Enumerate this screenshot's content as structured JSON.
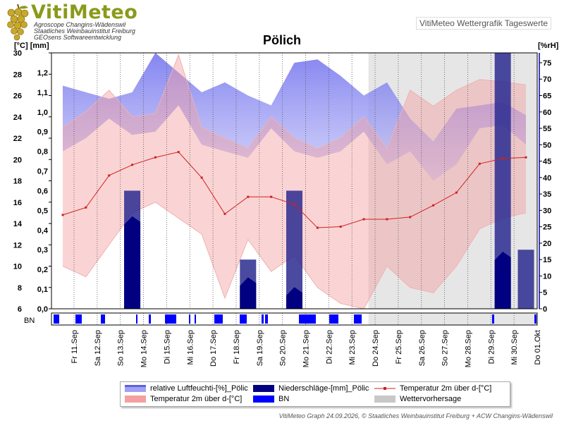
{
  "header": {
    "brand": "VitiMeteo",
    "lines": [
      "Agroscope Changins-Wädenswil",
      "Staatliches Weinbauinstitut Freiburg",
      "GEOsens Softwareentwicklung"
    ],
    "right_label": "VitiMeteo Wettergrafik Tageswerte"
  },
  "footer": "VitiMeteo Graph 24.09.2026, © Staatliches Weinbauinstitut Freiburg + ACW Changins-Wädenswil",
  "chart_data": {
    "type": "line",
    "title": "Pölich",
    "unit_left": "[°C] [mm]",
    "unit_right": "[%rH]",
    "categories": [
      "Fr 11.Sep",
      "Sa 12.Sep",
      "So 13.Sep",
      "Mo 14.Sep",
      "Di 15.Sep",
      "Mi 16.Sep",
      "Do 17.Sep",
      "Fr 18.Sep",
      "Sa 19.Sep",
      "So 20.Sep",
      "Mo 21.Sep",
      "Di 22.Sep",
      "Mi 23.Sep",
      "Do 24.Sep",
      "Fr 25.Sep",
      "Sa 26.Sep",
      "So 27.Sep",
      "Mo 28.Sep",
      "Di 29.Sep",
      "Mi 30.Sep",
      "Do 01.Okt"
    ],
    "axes": {
      "temp": {
        "range": [
          6,
          30
        ],
        "ticks": [
          6,
          8,
          10,
          12,
          14,
          16,
          18,
          20,
          22,
          24,
          26,
          28,
          30
        ]
      },
      "precip": {
        "range": [
          0,
          1.3
        ],
        "ticks": [
          "0,0",
          "0,1",
          "0,2",
          "0,3",
          "0,4",
          "0,5",
          "0,6",
          "0,7",
          "0,8",
          "0,9",
          "1,0",
          "1,1",
          "1,2"
        ]
      },
      "humidity": {
        "range": [
          0,
          78
        ],
        "ticks": [
          0,
          5,
          10,
          15,
          20,
          25,
          30,
          35,
          40,
          45,
          50,
          55,
          60,
          65,
          70,
          75
        ]
      }
    },
    "forecast_from_index": 13.2,
    "forecast_label": "Wettervorhersage",
    "series": [
      {
        "name": "relative Luftfeuchti-[%]_Pölic",
        "axis": "humidity",
        "color": "#8080f0",
        "max": [
          68,
          66,
          64,
          66,
          78,
          72,
          66,
          69,
          65,
          62,
          75,
          76,
          71,
          65,
          69,
          58,
          51,
          61,
          62,
          63,
          59
        ],
        "min": [
          48,
          52,
          58,
          53,
          54,
          62,
          50,
          48,
          46,
          55,
          48,
          46,
          48,
          54,
          44,
          48,
          39,
          44,
          55,
          56,
          50
        ]
      },
      {
        "name": "Temperatur 2m über d-[°C]",
        "axis": "temp",
        "color": "#f4a0a0",
        "max": [
          23,
          24.5,
          26.5,
          24,
          24.3,
          29.8,
          23,
          22,
          21,
          24,
          22,
          21,
          22,
          24,
          21,
          26.5,
          25,
          26.5,
          27.5,
          27.3,
          27
        ],
        "min": [
          10,
          9,
          12,
          15,
          16,
          14.5,
          13,
          7,
          12.5,
          9.5,
          11,
          8,
          6.5,
          6,
          10,
          8,
          7.5,
          10,
          13.5,
          14.5,
          15
        ]
      },
      {
        "name": "Niederschläge-[mm]_Pölic",
        "axis": "precip",
        "color": "#000080",
        "values": [
          0,
          0,
          0,
          0.6,
          0,
          0,
          0,
          0,
          0.25,
          0,
          0.6,
          0,
          0,
          0,
          0,
          0,
          0,
          0,
          0,
          1.3,
          0.3
        ],
        "drawn_to": [
          0,
          0,
          0,
          0.47,
          0,
          0,
          0,
          0,
          0.16,
          0,
          0.11,
          0,
          0,
          0,
          0,
          0,
          0,
          0,
          0,
          0.29,
          0
        ]
      },
      {
        "name": "Temperatur 2m über d-[°C]",
        "axis": "temp",
        "color": "#d02020",
        "values": [
          14.8,
          15.5,
          18.5,
          19.5,
          20.2,
          20.7,
          18.3,
          14.9,
          16.5,
          16.5,
          15.8,
          13.6,
          13.7,
          14.4,
          14.4,
          14.6,
          15.7,
          16.9,
          19.6,
          20.1,
          20.2
        ]
      },
      {
        "name": "BN",
        "color": "#0000ff",
        "ticks_label": "BN"
      }
    ],
    "legend_placement": "bottom"
  }
}
